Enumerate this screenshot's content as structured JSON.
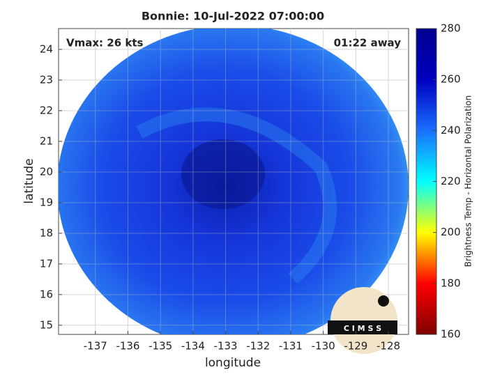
{
  "chart_data": {
    "type": "image",
    "title": "Bonnie: 10-Jul-2022 07:00:00",
    "xlabel": "longitude",
    "ylabel": "latitude",
    "annotations": [
      "Vmax: 26 kts",
      "01:22 away"
    ],
    "xlim": [
      -138.13,
      -127.38
    ],
    "xticks": [
      -137,
      -136,
      -135,
      -134,
      -133,
      -132,
      -131,
      -130,
      -129,
      -128
    ],
    "ylim": [
      14.7,
      24.68
    ],
    "yticks": [
      15,
      16,
      17,
      18,
      19,
      20,
      21,
      22,
      23,
      24
    ],
    "grid": true,
    "colorbar": {
      "label": "Brightness Temp - Horizontal Polarization",
      "lim": [
        160,
        280
      ],
      "ticks": [
        160,
        180,
        200,
        220,
        240,
        260,
        280
      ],
      "colors": [
        "#800000",
        "#ff0000",
        "#ffff00",
        "#00ffff",
        "#1a6fff",
        "#0000c0",
        "#00008f"
      ]
    },
    "logo": "C I M S S"
  }
}
